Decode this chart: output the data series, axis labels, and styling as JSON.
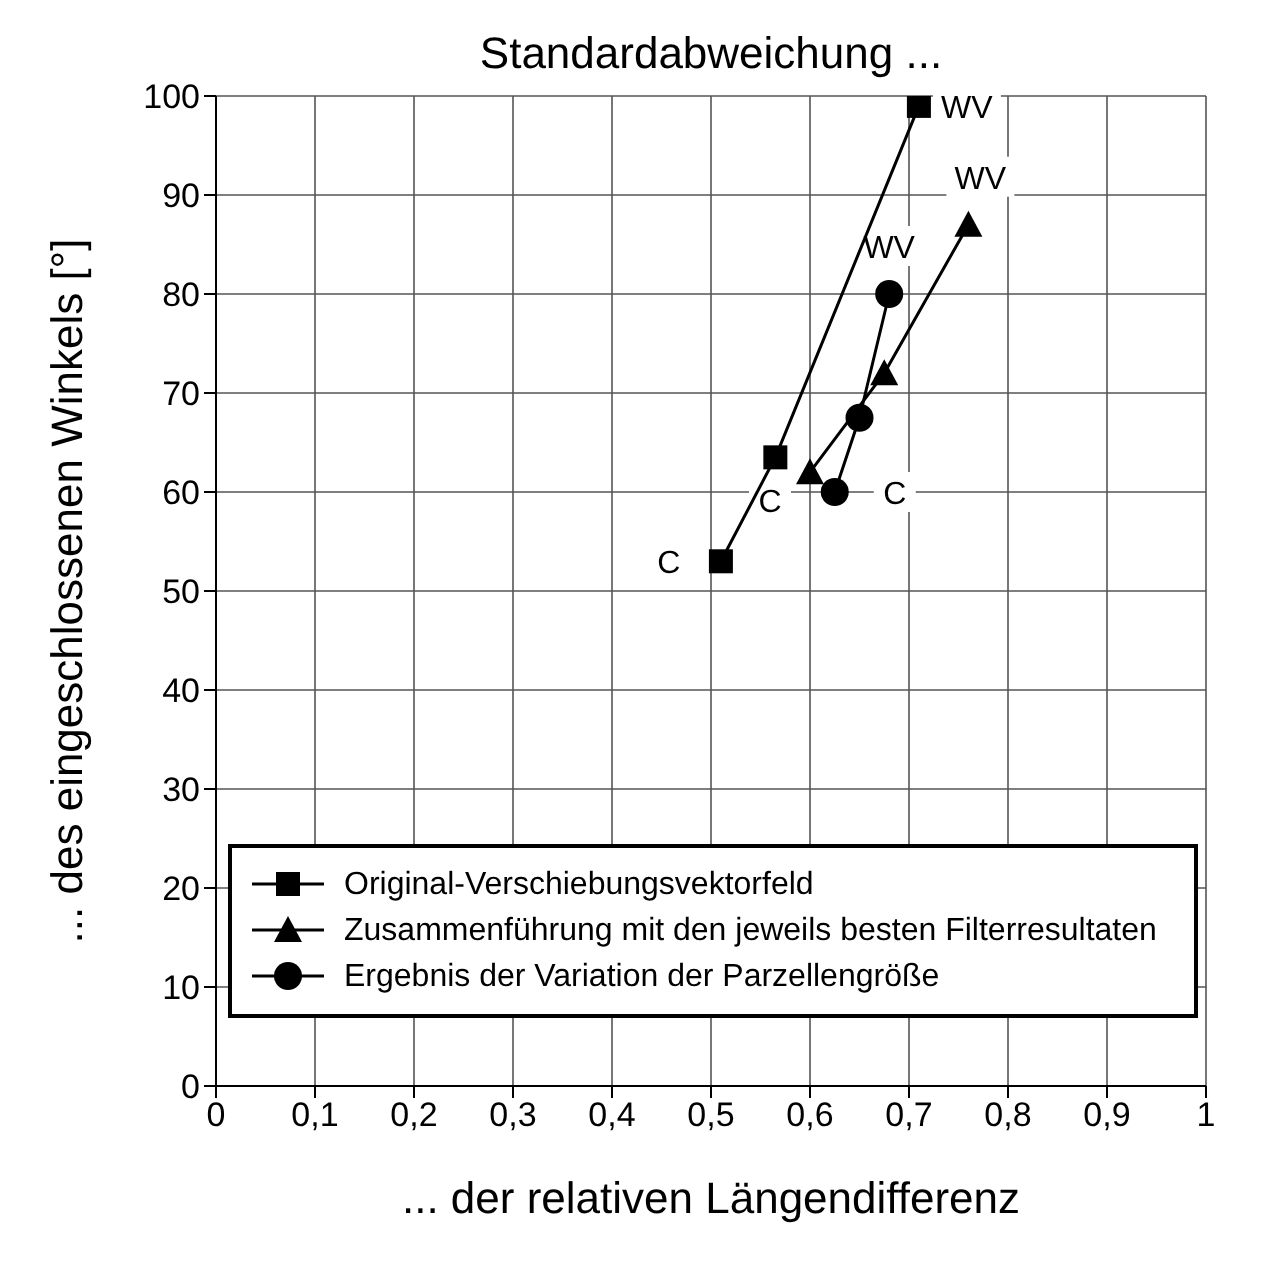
{
  "chart_data": {
    "type": "line",
    "title": "Standardabweichung ...",
    "xlabel": "... der relativen Längendifferenz",
    "ylabel": "... des eingeschlossenen Winkels [°]",
    "xlim": [
      0,
      1
    ],
    "xticks": [
      {
        "value": 0,
        "label": "0"
      },
      {
        "value": 0.1,
        "label": "0,1"
      },
      {
        "value": 0.2,
        "label": "0,2"
      },
      {
        "value": 0.3,
        "label": "0,3"
      },
      {
        "value": 0.4,
        "label": "0,4"
      },
      {
        "value": 0.5,
        "label": "0,5"
      },
      {
        "value": 0.6,
        "label": "0,6"
      },
      {
        "value": 0.7,
        "label": "0,7"
      },
      {
        "value": 0.8,
        "label": "0,8"
      },
      {
        "value": 0.9,
        "label": "0,9"
      },
      {
        "value": 1,
        "label": "1"
      }
    ],
    "ylim": [
      0,
      100
    ],
    "yticks": [
      0,
      10,
      20,
      30,
      40,
      50,
      60,
      70,
      80,
      90,
      100
    ],
    "grid": true,
    "legend": "bottom",
    "line_style": "solid",
    "series": [
      {
        "name": "Original-Verschiebungsvektorfeld",
        "color": "#000000",
        "marker": "square",
        "x": [
          0.51,
          0.565,
          0.71
        ],
        "values": [
          53,
          63.5,
          99
        ]
      },
      {
        "name": "Zusammenführung mit den jeweils besten Filterresultaten",
        "color": "#000000",
        "marker": "triangle",
        "x": [
          0.6,
          0.675,
          0.76
        ],
        "values": [
          62,
          72,
          87
        ]
      },
      {
        "name": "Ergebnis der Variation der Parzellengröße",
        "color": "#000000",
        "marker": "circle",
        "x": [
          0.625,
          0.65,
          0.68
        ],
        "values": [
          60,
          67.5,
          80
        ]
      }
    ],
    "annotations": [
      {
        "text": "C",
        "x": 0.51,
        "y": 53
      },
      {
        "text": "C",
        "x": 0.6,
        "y": 62
      },
      {
        "text": "C",
        "x": 0.625,
        "y": 60
      },
      {
        "text": "WV",
        "x": 0.71,
        "y": 99
      },
      {
        "text": "WV",
        "x": 0.76,
        "y": 87
      },
      {
        "text": "WV",
        "x": 0.68,
        "y": 80
      }
    ]
  }
}
